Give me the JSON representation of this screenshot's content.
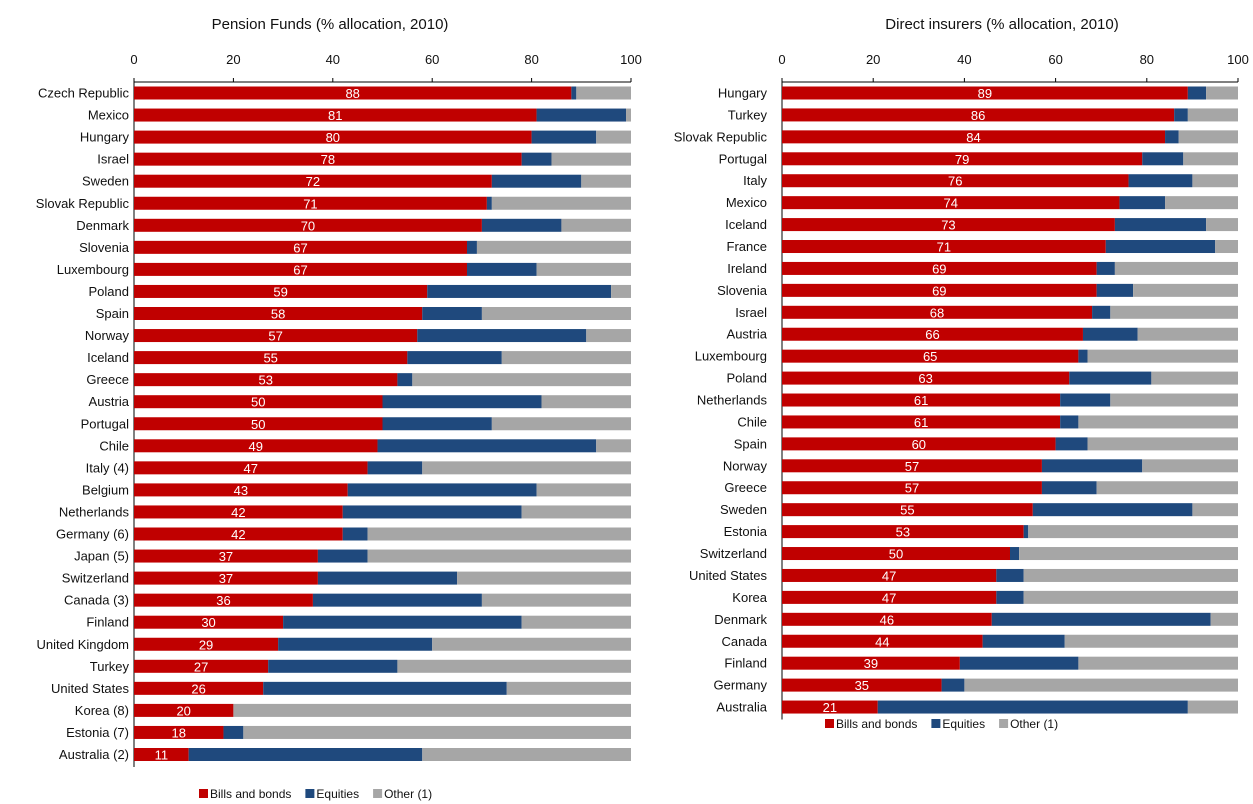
{
  "chart_data": [
    {
      "type": "bar",
      "orientation": "horizontal",
      "stacked": true,
      "title": "Pension Funds (% allocation, 2010)",
      "xlim": [
        0,
        100
      ],
      "xticks": [
        0,
        20,
        40,
        60,
        80,
        100
      ],
      "grid": false,
      "legend_position": "bottom-left",
      "categories": [
        "Czech Republic",
        "Mexico",
        "Hungary",
        "Israel",
        "Sweden",
        "Slovak Republic",
        "Denmark",
        "Slovenia",
        "Luxembourg",
        "Poland",
        "Spain",
        "Norway",
        "Iceland",
        "Greece",
        "Austria",
        "Portugal",
        "Chile",
        "Italy (4)",
        "Belgium",
        "Netherlands",
        "Germany (6)",
        "Japan (5)",
        "Switzerland",
        "Canada (3)",
        "Finland",
        "United Kingdom",
        "Turkey",
        "United States",
        "Korea (8)",
        "Estonia (7)",
        "Australia (2)"
      ],
      "series": [
        {
          "name": "Bills and bonds",
          "color": "#c00000",
          "values": [
            88,
            81,
            80,
            78,
            72,
            71,
            70,
            67,
            67,
            59,
            58,
            57,
            55,
            53,
            50,
            50,
            49,
            47,
            43,
            42,
            42,
            37,
            37,
            36,
            30,
            29,
            27,
            26,
            20,
            18,
            11
          ]
        },
        {
          "name": "Equities",
          "color": "#1f497d",
          "values": [
            1,
            18,
            13,
            6,
            18,
            1,
            16,
            2,
            14,
            37,
            12,
            34,
            19,
            3,
            32,
            22,
            44,
            11,
            38,
            36,
            5,
            10,
            28,
            34,
            48,
            31,
            26,
            49,
            0,
            4,
            47
          ]
        },
        {
          "name": "Other (1)",
          "color": "#a6a6a6",
          "values": [
            11,
            1,
            7,
            16,
            10,
            28,
            14,
            31,
            19,
            4,
            30,
            9,
            26,
            44,
            18,
            28,
            7,
            42,
            19,
            22,
            53,
            53,
            35,
            30,
            22,
            40,
            47,
            25,
            80,
            78,
            42
          ]
        }
      ],
      "data_labels": [
        "88",
        "81",
        "80",
        "78",
        "72",
        "71",
        "70",
        "67",
        "67",
        "59",
        "58",
        "57",
        "55",
        "53",
        "50",
        "50",
        "49",
        "47",
        "43",
        "42",
        "42",
        "37",
        "37",
        "36",
        "30",
        "29",
        "27",
        "26",
        "20",
        "18",
        "11"
      ]
    },
    {
      "type": "bar",
      "orientation": "horizontal",
      "stacked": true,
      "title": "Direct insurers  (% allocation, 2010)",
      "xlim": [
        0,
        100
      ],
      "xticks": [
        0,
        20,
        40,
        60,
        80,
        100
      ],
      "grid": false,
      "legend_position": "bottom-left",
      "categories": [
        "Hungary",
        "Turkey",
        "Slovak Republic",
        "Portugal",
        "Italy",
        "Mexico",
        "Iceland",
        "France",
        "Ireland",
        "Slovenia",
        "Israel",
        "Austria",
        "Luxembourg",
        "Poland",
        "Netherlands",
        "Chile",
        "Spain",
        "Norway",
        "Greece",
        "Sweden",
        "Estonia",
        "Switzerland",
        "United States",
        "Korea",
        "Denmark",
        "Canada",
        "Finland",
        "Germany",
        "Australia"
      ],
      "series": [
        {
          "name": "Bills and bonds",
          "color": "#c00000",
          "values": [
            89,
            86,
            84,
            79,
            76,
            74,
            73,
            71,
            69,
            69,
            68,
            66,
            65,
            63,
            61,
            61,
            60,
            57,
            57,
            55,
            53,
            50,
            47,
            47,
            46,
            44,
            39,
            35,
            21
          ]
        },
        {
          "name": "Equities",
          "color": "#1f497d",
          "values": [
            4,
            3,
            3,
            9,
            14,
            10,
            20,
            24,
            4,
            8,
            4,
            12,
            2,
            18,
            11,
            4,
            7,
            22,
            12,
            35,
            1,
            2,
            6,
            6,
            48,
            18,
            26,
            5,
            68
          ]
        },
        {
          "name": "Other (1)",
          "color": "#a6a6a6",
          "values": [
            7,
            11,
            13,
            12,
            10,
            16,
            7,
            5,
            27,
            23,
            28,
            22,
            33,
            19,
            28,
            35,
            33,
            21,
            31,
            10,
            46,
            48,
            47,
            47,
            6,
            38,
            35,
            60,
            11
          ]
        }
      ],
      "data_labels": [
        "89",
        "86",
        "84",
        "79",
        "76",
        "74",
        "73",
        "71",
        "69",
        "69",
        "68",
        "66",
        "65",
        "63",
        "61",
        "61",
        "60",
        "57",
        "57",
        "55",
        "53",
        "50",
        "47",
        "47",
        "46",
        "44",
        "39",
        "35",
        "21"
      ]
    }
  ]
}
